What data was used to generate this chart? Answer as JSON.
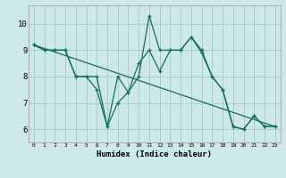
{
  "xlabel": "Humidex (Indice chaleur)",
  "background_color": "#cce8e8",
  "grid_color": "#aacccc",
  "line_color": "#1a6b60",
  "xlim": [
    -0.5,
    23.5
  ],
  "ylim": [
    5.5,
    10.7
  ],
  "xticks": [
    0,
    1,
    2,
    3,
    4,
    5,
    6,
    7,
    8,
    9,
    10,
    11,
    12,
    13,
    14,
    15,
    16,
    17,
    18,
    19,
    20,
    21,
    22,
    23
  ],
  "yticks": [
    6,
    7,
    8,
    9,
    10
  ],
  "line1_x": [
    0,
    1,
    2,
    3,
    4,
    5,
    6,
    7,
    8,
    9,
    10,
    11,
    12,
    13,
    14,
    15,
    16,
    17,
    18,
    19,
    20,
    21,
    22,
    23
  ],
  "line1_y": [
    9.2,
    9.0,
    9.0,
    9.0,
    8.0,
    8.0,
    8.0,
    6.1,
    8.0,
    7.4,
    8.0,
    10.3,
    9.0,
    9.0,
    9.0,
    9.5,
    9.0,
    8.0,
    7.5,
    6.1,
    6.0,
    6.5,
    6.1,
    6.1
  ],
  "line2_x": [
    0,
    1,
    2,
    3,
    4,
    5,
    6,
    7,
    8,
    9,
    10,
    11,
    12,
    13,
    14,
    15,
    16,
    17,
    18,
    19,
    20,
    21,
    22,
    23
  ],
  "line2_y": [
    9.2,
    9.0,
    9.0,
    9.0,
    8.0,
    8.0,
    7.5,
    6.1,
    7.0,
    7.4,
    8.5,
    9.0,
    8.2,
    9.0,
    9.0,
    9.5,
    8.9,
    8.0,
    7.5,
    6.1,
    6.0,
    6.5,
    6.1,
    6.1
  ],
  "line3_x": [
    0,
    23
  ],
  "line3_y": [
    9.2,
    6.1
  ]
}
